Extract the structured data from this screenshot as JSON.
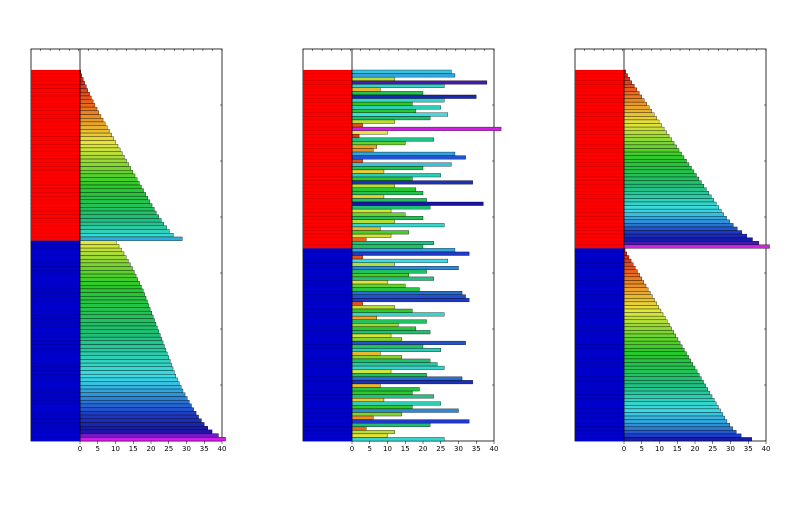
{
  "chart_data": [
    {
      "type": "bar",
      "orientation": "horizontal",
      "panel": "left",
      "ordering": "each group sorted ascending",
      "xlim": [
        0,
        40
      ],
      "xticks": [
        0,
        5,
        10,
        15,
        20,
        25,
        30,
        35,
        40
      ],
      "group_colors": {
        "top": "#ff0000",
        "bottom": "#0000cc"
      },
      "groups": [
        {
          "name": "",
          "color": "#ff0000",
          "values": [
            0.2,
            0.5,
            0.9,
            1.3,
            1.8,
            2.2,
            2.7,
            3.2,
            3.7,
            4.2,
            4.8,
            5.3,
            5.9,
            6.5,
            7.1,
            7.7,
            8.3,
            8.9,
            9.5,
            10.1,
            10.7,
            11.3,
            11.9,
            12.5,
            13.1,
            13.7,
            14.3,
            14.9,
            15.5,
            16.1,
            16.7,
            17.3,
            17.9,
            18.5,
            19.1,
            19.7,
            20.3,
            20.9,
            21.5,
            22.2,
            22.9,
            23.6,
            24.4,
            25.2,
            26.3,
            28.8
          ]
        },
        {
          "name": "",
          "color": "#0000cc",
          "values": [
            10.2,
            11.0,
            11.7,
            12.4,
            13.0,
            13.6,
            14.2,
            14.8,
            15.3,
            15.8,
            16.3,
            16.8,
            17.3,
            17.8,
            18.2,
            18.6,
            19.0,
            19.4,
            19.8,
            20.2,
            20.6,
            21.0,
            21.4,
            21.8,
            22.2,
            22.6,
            23.0,
            23.4,
            23.8,
            24.2,
            24.6,
            25.0,
            25.4,
            25.8,
            26.2,
            26.6,
            27.0,
            27.5,
            28.0,
            28.5,
            29.0,
            29.6,
            30.2,
            30.8,
            31.4,
            32.0,
            32.7,
            33.4,
            34.2,
            35.0,
            36.0,
            37.2,
            39.0,
            41.0
          ]
        }
      ]
    },
    {
      "type": "bar",
      "orientation": "horizontal",
      "panel": "middle",
      "ordering": "unsorted",
      "xlim": [
        0,
        40
      ],
      "xticks": [
        0,
        5,
        10,
        15,
        20,
        25,
        30,
        35,
        40
      ],
      "group_colors": {
        "top": "#ff0000",
        "bottom": "#0000cc"
      },
      "groups": [
        {
          "name": "",
          "color": "#ff0000",
          "values": [
            28,
            29,
            12,
            38,
            26,
            8,
            20,
            35,
            26,
            17,
            25,
            18,
            27,
            22,
            12,
            3,
            42,
            10,
            2,
            23,
            15,
            7,
            6,
            29,
            32,
            3,
            28,
            20,
            9,
            25,
            17,
            34,
            12,
            18,
            20,
            9,
            21,
            37,
            22,
            11,
            15,
            20,
            12,
            26,
            8,
            16,
            11,
            4,
            23,
            20
          ]
        },
        {
          "name": "",
          "color": "#0000cc",
          "values": [
            29,
            33,
            3,
            27,
            12,
            30,
            21,
            16,
            23,
            10,
            15,
            19,
            31,
            32,
            33,
            3,
            12,
            17,
            26,
            7,
            21,
            13,
            18,
            22,
            11,
            14,
            32,
            20,
            25,
            8,
            14,
            22,
            24,
            26,
            11,
            21,
            31,
            34,
            8,
            19,
            17,
            23,
            9,
            25,
            17,
            30,
            14,
            6,
            33,
            22,
            4,
            12,
            10,
            26
          ]
        }
      ]
    },
    {
      "type": "bar",
      "orientation": "horizontal",
      "panel": "right",
      "ordering": "each group sorted ascending",
      "xlim": [
        0,
        40
      ],
      "xticks": [
        0,
        5,
        10,
        15,
        20,
        25,
        30,
        35,
        40
      ],
      "group_colors": {
        "top": "#ff0000",
        "bottom": "#0000cc"
      },
      "groups": [
        {
          "name": "",
          "color": "#ff0000",
          "values": [
            0.5,
            1.0,
            1.6,
            2.2,
            2.9,
            3.6,
            4.3,
            5.0,
            5.7,
            6.4,
            7.1,
            7.8,
            8.5,
            9.2,
            9.9,
            10.6,
            11.3,
            12.0,
            12.7,
            13.4,
            14.1,
            14.8,
            15.5,
            16.2,
            16.9,
            17.6,
            18.3,
            19.0,
            19.7,
            20.4,
            21.1,
            21.8,
            22.5,
            23.2,
            23.9,
            24.6,
            25.3,
            26.0,
            26.7,
            27.4,
            28.1,
            28.9,
            29.8,
            30.8,
            31.9,
            33.2,
            34.6,
            36.2,
            38.0,
            41.0
          ]
        },
        {
          "name": "",
          "color": "#0000cc",
          "values": [
            0.3,
            0.8,
            1.4,
            2.0,
            2.6,
            3.2,
            3.8,
            4.4,
            5.0,
            5.6,
            6.2,
            6.8,
            7.4,
            8.0,
            8.6,
            9.2,
            9.8,
            10.4,
            11.0,
            11.6,
            12.2,
            12.8,
            13.4,
            14.0,
            14.6,
            15.2,
            15.8,
            16.4,
            17.0,
            17.6,
            18.2,
            18.8,
            19.4,
            20.0,
            20.6,
            21.2,
            21.8,
            22.4,
            23.0,
            23.6,
            24.2,
            24.8,
            25.4,
            26.0,
            26.6,
            27.2,
            27.8,
            28.4,
            29.0,
            29.8,
            30.6,
            31.6,
            33.0,
            36.0
          ]
        }
      ]
    }
  ]
}
